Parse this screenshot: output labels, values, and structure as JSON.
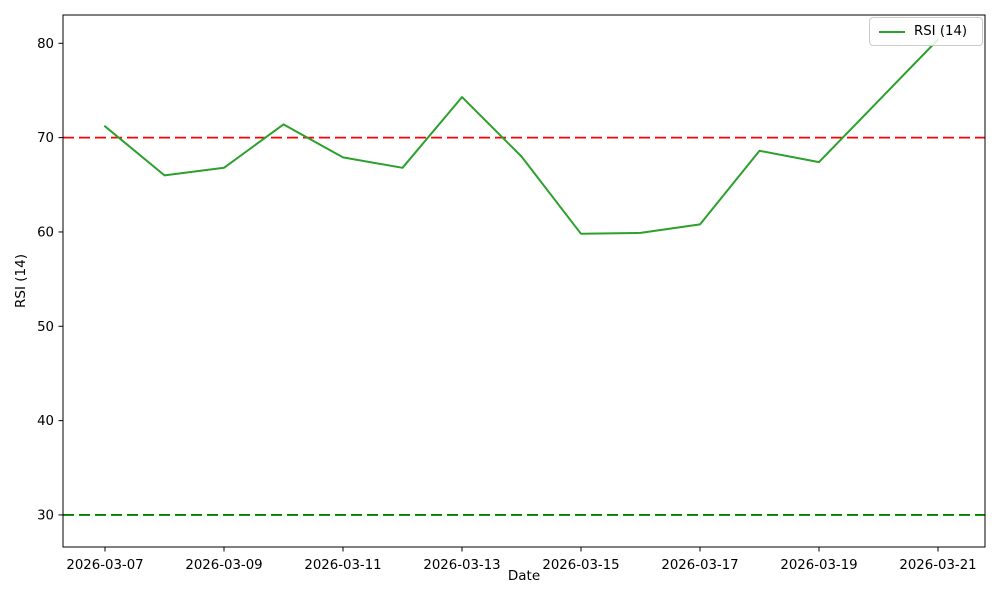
{
  "figure": {
    "title": "",
    "background": "#ffffff",
    "axis_color": "#000000"
  },
  "chart_data": {
    "type": "line",
    "title": "",
    "xlabel": "Date",
    "ylabel": "RSI (14)",
    "x": [
      "2026-03-07",
      "2026-03-08",
      "2026-03-09",
      "2026-03-10",
      "2026-03-11",
      "2026-03-12",
      "2026-03-13",
      "2026-03-14",
      "2026-03-15",
      "2026-03-16",
      "2026-03-17",
      "2026-03-18",
      "2026-03-19",
      "2026-03-20",
      "2026-03-21"
    ],
    "series": [
      {
        "name": "RSI (14)",
        "color": "#2ca02c",
        "line_style": "solid",
        "values": [
          71.2,
          66.0,
          66.8,
          71.4,
          67.9,
          66.8,
          74.3,
          68.0,
          59.8,
          59.9,
          60.8,
          68.6,
          67.4,
          73.9,
          80.4
        ]
      }
    ],
    "hlines": [
      {
        "name": "overbought-line",
        "y": 70,
        "color": "#ff0000",
        "style": "dashed"
      },
      {
        "name": "oversold-line",
        "y": 30,
        "color": "#008000",
        "style": "dashed"
      }
    ],
    "yticks": [
      30,
      40,
      50,
      60,
      70,
      80
    ],
    "xticks": [
      "2026-03-07",
      "2026-03-09",
      "2026-03-11",
      "2026-03-13",
      "2026-03-15",
      "2026-03-17",
      "2026-03-19",
      "2026-03-21"
    ],
    "ylim": [
      26.6,
      83.0
    ],
    "grid": false,
    "legend": {
      "position": "upper right",
      "entries": [
        {
          "label": "RSI (14)",
          "color": "#2ca02c"
        }
      ]
    }
  }
}
